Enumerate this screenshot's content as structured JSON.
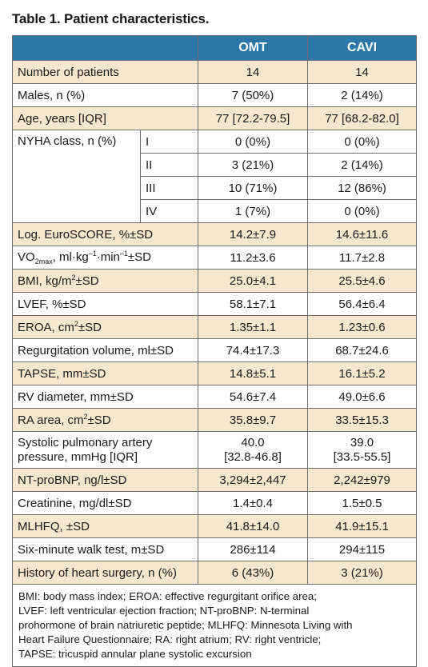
{
  "title": "Table 1. Patient characteristics.",
  "columns": [
    "OMT",
    "CAVI"
  ],
  "rows": {
    "patients": {
      "label": "Number of patients",
      "omt": "14",
      "cavi": "14"
    },
    "males": {
      "label": "Males, n (%)",
      "omt": "7 (50%)",
      "cavi": "2 (14%)"
    },
    "age": {
      "label": "Age, years [IQR]",
      "omt": "77 [72.2-79.5]",
      "cavi": "77 [68.2-82.0]"
    },
    "nyha": {
      "label": "NYHA class, n (%)",
      "classes": [
        {
          "cls": "I",
          "omt": "0 (0%)",
          "cavi": "0 (0%)"
        },
        {
          "cls": "II",
          "omt": "3 (21%)",
          "cavi": "2 (14%)"
        },
        {
          "cls": "III",
          "omt": "10 (71%)",
          "cavi": "12 (86%)"
        },
        {
          "cls": "IV",
          "omt": "1 (7%)",
          "cavi": "0 (0%)"
        }
      ]
    },
    "euroscore": {
      "label": "Log. EuroSCORE, %±SD",
      "omt": "14.2±7.9",
      "cavi": "14.6±11.6"
    },
    "vo2": {
      "label_pre": "VO",
      "label_sub": "2max",
      "label_mid": ", ml·kg",
      "label_sup1": "–1",
      "label_mid2": "·min",
      "label_sup2": "–1",
      "label_post": "±SD",
      "omt": "11.2±3.6",
      "cavi": "11.7±2.8"
    },
    "bmi": {
      "label_pre": "BMI, kg/m",
      "label_sup": "2",
      "label_post": "±SD",
      "omt": "25.0±4.1",
      "cavi": "25.5±4.6"
    },
    "lvef": {
      "label": "LVEF, %±SD",
      "omt": "58.1±7.1",
      "cavi": "56.4±6.4"
    },
    "eroa": {
      "label_pre": "EROA, cm",
      "label_sup": "2",
      "label_post": "±SD",
      "omt": "1.35±1.1",
      "cavi": "1.23±0.6"
    },
    "regvol": {
      "label": "Regurgitation volume, ml±SD",
      "omt": "74.4±17.3",
      "cavi": "68.7±24.6"
    },
    "tapse": {
      "label": "TAPSE, mm±SD",
      "omt": "14.8±5.1",
      "cavi": "16.1±5.2"
    },
    "rvdiam": {
      "label": "RV diameter, mm±SD",
      "omt": "54.6±7.4",
      "cavi": "49.0±6.6"
    },
    "raarea": {
      "label_pre": "RA area, cm",
      "label_sup": "2",
      "label_post": "±SD",
      "omt": "35.8±9.7",
      "cavi": "33.5±15.3"
    },
    "spap": {
      "label_line1": "Systolic pulmonary artery",
      "label_line2": "pressure, mmHg [IQR]",
      "omt_line1": "40.0",
      "omt_line2": "[32.8-46.8]",
      "cavi_line1": "39.0",
      "cavi_line2": "[33.5-55.5]"
    },
    "ntprobnp": {
      "label": "NT-proBNP, ng/l±SD",
      "omt": "3,294±2,447",
      "cavi": "2,242±979"
    },
    "creat": {
      "label": "Creatinine, mg/dl±SD",
      "omt": "1.4±0.4",
      "cavi": "1.5±0.5"
    },
    "mlhfq": {
      "label": "MLHFQ, ±SD",
      "omt": "41.8±14.0",
      "cavi": "41.9±15.1"
    },
    "sixmin": {
      "label": "Six-minute walk test, m±SD",
      "omt": "286±114",
      "cavi": "294±115"
    },
    "surgery": {
      "label": "History of heart surgery, n (%)",
      "omt": "6 (43%)",
      "cavi": "3 (21%)"
    }
  },
  "footnote": {
    "line1": "BMI: body mass index; EROA: effective regurgitant orifice area;",
    "line2": "LVEF: left ventricular ejection fraction; NT-proBNP: N-terminal",
    "line3": "prohormone of brain natriuretic peptide; MLHFQ: Minnesota Living with",
    "line4": "Heart Failure Questionnaire; RA: right atrium; RV: right ventricle;",
    "line5": "TAPSE: tricuspid annular plane systolic excursion"
  }
}
